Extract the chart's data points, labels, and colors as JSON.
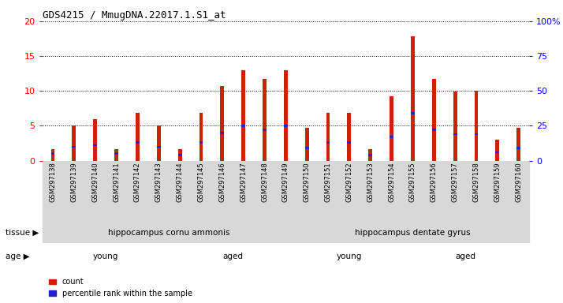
{
  "title": "GDS4215 / MmugDNA.22017.1.S1_at",
  "samples": [
    "GSM297138",
    "GSM297139",
    "GSM297140",
    "GSM297141",
    "GSM297142",
    "GSM297143",
    "GSM297144",
    "GSM297145",
    "GSM297146",
    "GSM297147",
    "GSM297148",
    "GSM297149",
    "GSM297150",
    "GSM297151",
    "GSM297152",
    "GSM297153",
    "GSM297154",
    "GSM297155",
    "GSM297156",
    "GSM297157",
    "GSM297158",
    "GSM297159",
    "GSM297160"
  ],
  "count_values": [
    1.6,
    5.0,
    5.9,
    1.7,
    6.8,
    5.0,
    1.7,
    6.8,
    10.7,
    13.0,
    11.7,
    13.0,
    4.7,
    6.8,
    6.8,
    1.7,
    9.2,
    17.8,
    11.7,
    9.9,
    10.0,
    3.0,
    4.7
  ],
  "percentile_values": [
    5,
    10,
    11,
    5,
    13,
    10,
    4,
    13,
    20,
    25,
    22,
    25,
    9,
    13,
    13,
    4,
    17,
    34,
    22,
    19,
    19,
    6,
    9
  ],
  "bar_color": "#cc2200",
  "blue_color": "#2222cc",
  "ylim_left": [
    0,
    20
  ],
  "ylim_right": [
    0,
    100
  ],
  "yticks_left": [
    0,
    5,
    10,
    15,
    20
  ],
  "yticks_right": [
    0,
    25,
    50,
    75,
    100
  ],
  "ytick_labels_right": [
    "0",
    "25",
    "50",
    "75",
    "100%"
  ],
  "plot_bg": "#ffffff",
  "xticklabel_bg": "#d8d8d8",
  "tissue_groups": [
    {
      "label": "hippocampus cornu ammonis",
      "start": 0,
      "end": 12,
      "color": "#aaeebb"
    },
    {
      "label": "hippocampus dentate gyrus",
      "start": 12,
      "end": 23,
      "color": "#44dd44"
    }
  ],
  "age_groups": [
    {
      "label": "young",
      "start": 0,
      "end": 6,
      "color": "#eeaaee"
    },
    {
      "label": "aged",
      "start": 6,
      "end": 12,
      "color": "#cc33cc"
    },
    {
      "label": "young",
      "start": 12,
      "end": 17,
      "color": "#eeaaee"
    },
    {
      "label": "aged",
      "start": 17,
      "end": 23,
      "color": "#cc33cc"
    }
  ],
  "tissue_label": "tissue",
  "age_label": "age",
  "legend_count": "count",
  "legend_pct": "percentile rank within the sample",
  "bar_width": 0.18
}
